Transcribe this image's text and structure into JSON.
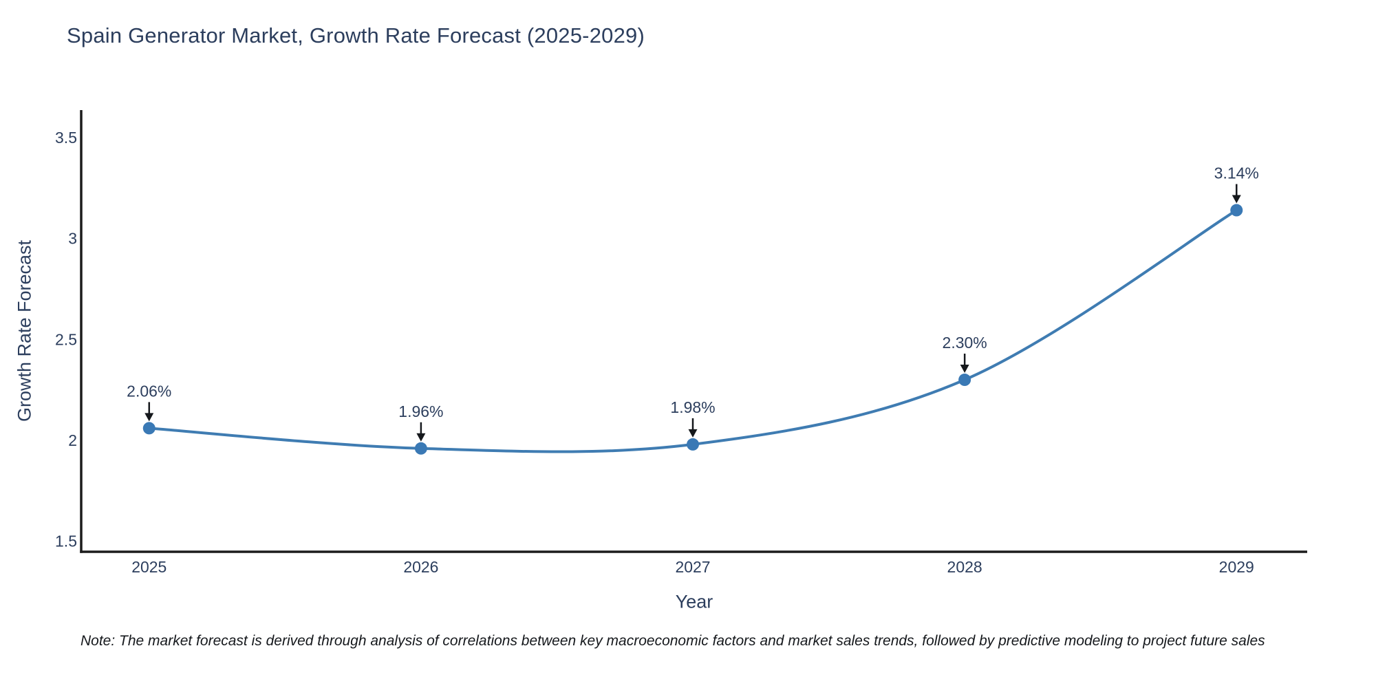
{
  "note": "Note: The market forecast is derived through analysis of correlations between key macroeconomic factors and market sales trends, followed by predictive modeling to project future sales",
  "chart_data": {
    "type": "line",
    "title": "Spain Generator Market, Growth Rate Forecast (2025-2029)",
    "xlabel": "Year",
    "ylabel": "Growth Rate Forecast",
    "categories": [
      "2025",
      "2026",
      "2027",
      "2028",
      "2029"
    ],
    "x": [
      2025,
      2026,
      2027,
      2028,
      2029
    ],
    "values": [
      2.06,
      1.96,
      1.98,
      2.3,
      3.14
    ],
    "point_labels": [
      "2.06%",
      "1.96%",
      "1.98%",
      "2.30%",
      "3.14%"
    ],
    "curve": "spline",
    "marker": "circle",
    "grid": false,
    "legend_position": "none",
    "annotations": "value labels above each point with downward arrows",
    "xlim": [
      2024.75,
      2029.26
    ],
    "ylim": [
      1.448,
      3.636
    ],
    "yticks": [
      1.5,
      2.0,
      2.5,
      3.0,
      3.5
    ],
    "ytick_labels": [
      "1.5",
      "2",
      "2.5",
      "3",
      "3.5"
    ],
    "colors": {
      "line": "#3f7cb2",
      "marker": "#3a79b5",
      "axis": "#1c1c1c",
      "text": "#2c3e5d",
      "arrow": "#15181c",
      "background": "#ffffff"
    }
  }
}
